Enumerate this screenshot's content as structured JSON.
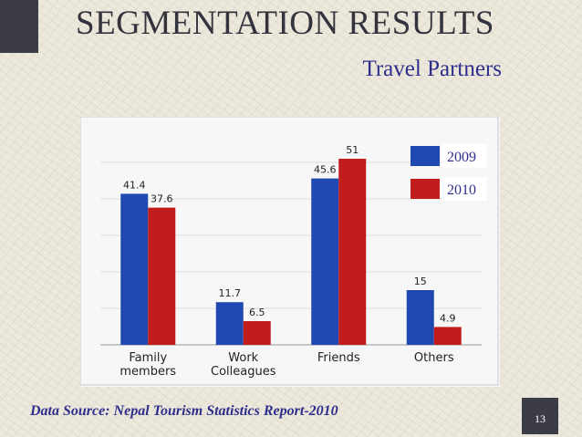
{
  "slide": {
    "title": "SEGMENTATION RESULTS",
    "subtitle": "Travel Partners",
    "source": "Data Source: Nepal Tourism Statistics Report-2010",
    "page_number": "13"
  },
  "chart_data": {
    "type": "bar",
    "title": "",
    "xlabel": "",
    "ylabel": "",
    "categories": [
      "Family\nmembers",
      "Work\nColleagues",
      "Friends",
      "Others"
    ],
    "series": [
      {
        "name": "2009",
        "values": [
          41.4,
          11.7,
          45.6,
          15
        ],
        "color": "#1f49b0"
      },
      {
        "name": "2010",
        "values": [
          37.6,
          6.5,
          51,
          4.9
        ],
        "color": "#c21d1d"
      }
    ],
    "ylim": [
      0,
      55
    ],
    "grid": true,
    "legend": "top-right",
    "value_labels": true
  }
}
